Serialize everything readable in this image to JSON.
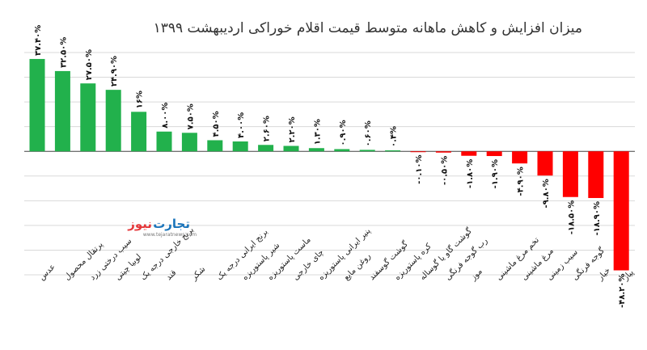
{
  "chart_data": {
    "type": "bar",
    "title": "میزان افزایش و کاهش ماهانه متوسط قیمت اقلام خوراکی اردیبهشت ۱۳۹۹",
    "categories": [
      "عدس",
      "پرتقال محصول",
      "سیب درختی زرد",
      "لوبیا چیتی",
      "برنج خارجی درجه یک",
      "قند",
      "شکر",
      "برنج ایرانی درجه یک",
      "شیر پاستوریزه",
      "ماست پاستوریزه",
      "چای خارجی",
      "پنیر ایرانی پاستوریزه",
      "روغن مایع",
      "گوشت گوسفند",
      "کره پاستوریزه",
      "گوشت گاو یا گوساله",
      "رب گوجه فرنگی",
      "موز",
      "تخم مرغ ماشینی",
      "مرغ ماشینی",
      "سیب زمینی",
      "گوجه فرنگی",
      "خیار",
      "پیاز"
    ],
    "values": [
      37.4,
      32.5,
      27.5,
      24.9,
      16,
      8.0,
      7.5,
      4.5,
      4.0,
      2.6,
      2.2,
      1.3,
      0.9,
      0.6,
      0.4,
      -0.1,
      -0.5,
      -1.8,
      -1.9,
      -4.9,
      -9.8,
      -18.5,
      -18.9,
      -48.2
    ],
    "value_labels": [
      "۳۷.۴۰%",
      "۳۲.۵۰%",
      "۲۷.۵۰%",
      "۲۴.۹۰%",
      "۱۶%",
      "۸.۰۰%",
      "۷.۵۰%",
      "۴.۵۰%",
      "۴.۰۰%",
      "۲.۶۰%",
      "۲.۲۰%",
      "۱.۳۰%",
      "۰.۹۰%",
      "۰.۶۰%",
      "۰.۴%",
      "-۰.۱۰%",
      "-۰.۵۰%",
      "-۱.۸۰%",
      "-۱.۹۰%",
      "-۴.۹۰%",
      "-۹.۸۰%",
      "-۱۸.۵۰%",
      "-۱۸.۹۰%",
      "-۴۸.۲۰%"
    ],
    "colors": {
      "positive": "#22b14c",
      "negative": "#ff0000"
    },
    "ylim": [
      -50,
      40
    ],
    "grid": true,
    "xlabel": "",
    "ylabel": ""
  },
  "logo": {
    "main": "تجارت",
    "accent": "نیوز",
    "sub": "www.tejaratnews.com"
  }
}
